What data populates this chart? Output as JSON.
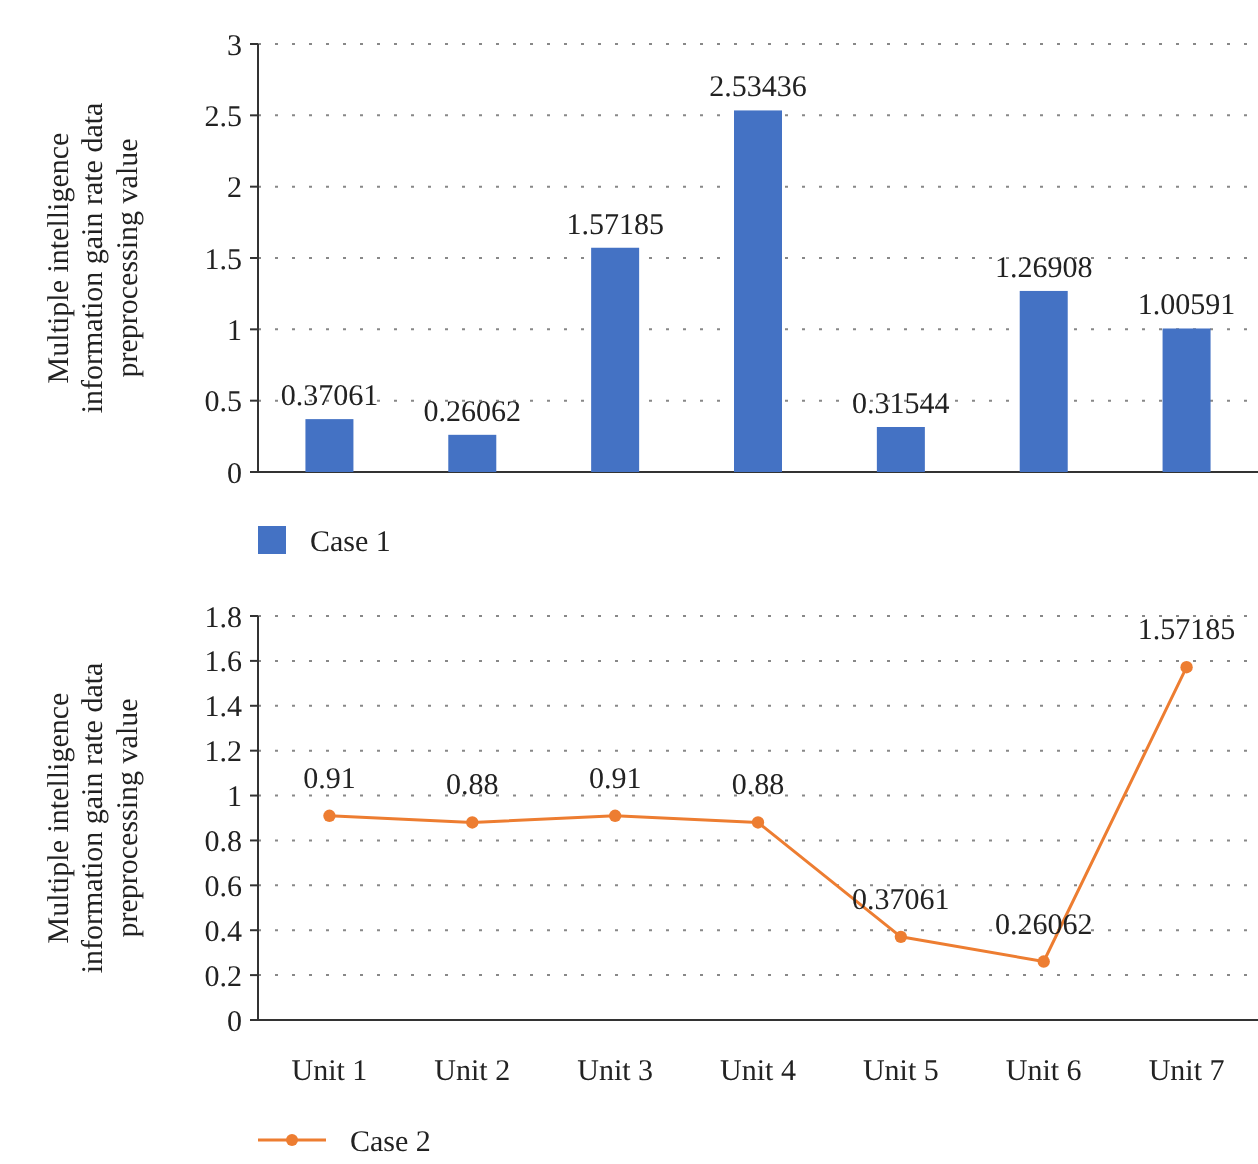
{
  "chart_data": [
    {
      "type": "bar",
      "ylabel": "Multiple intelligence information gain rate data preprocessing value",
      "categories": [
        null,
        null,
        null,
        null,
        null,
        null,
        null
      ],
      "series": [
        {
          "name": "Case 1",
          "color": "#4472c4",
          "values": [
            0.37061,
            0.26062,
            1.57185,
            2.53436,
            0.31544,
            1.26908,
            1.00591
          ]
        }
      ],
      "ylim": [
        0,
        3
      ],
      "yticks": [
        0,
        0.5,
        1,
        1.5,
        2,
        2.5,
        3
      ],
      "grid": "y",
      "legend": "bottom left",
      "data_labels": true
    },
    {
      "type": "line",
      "ylabel": "Multiple intelligence information gain rate data preprocessing value",
      "categories": [
        "Unit 1",
        "Unit 2",
        "Unit 3",
        "Unit 4",
        "Unit 5",
        "Unit 6",
        "Unit 7"
      ],
      "series": [
        {
          "name": "Case 2",
          "color": "#ed7d31",
          "values": [
            0.91,
            0.88,
            0.91,
            0.88,
            0.37061,
            0.26062,
            1.57185
          ]
        }
      ],
      "ylim": [
        0,
        1.8
      ],
      "yticks": [
        0,
        0.2,
        0.4,
        0.6,
        0.8,
        1,
        1.2,
        1.4,
        1.6,
        1.8
      ],
      "grid": "y",
      "legend": "bottom left",
      "data_labels": true,
      "marker": "circle",
      "line_style": "solid"
    }
  ]
}
